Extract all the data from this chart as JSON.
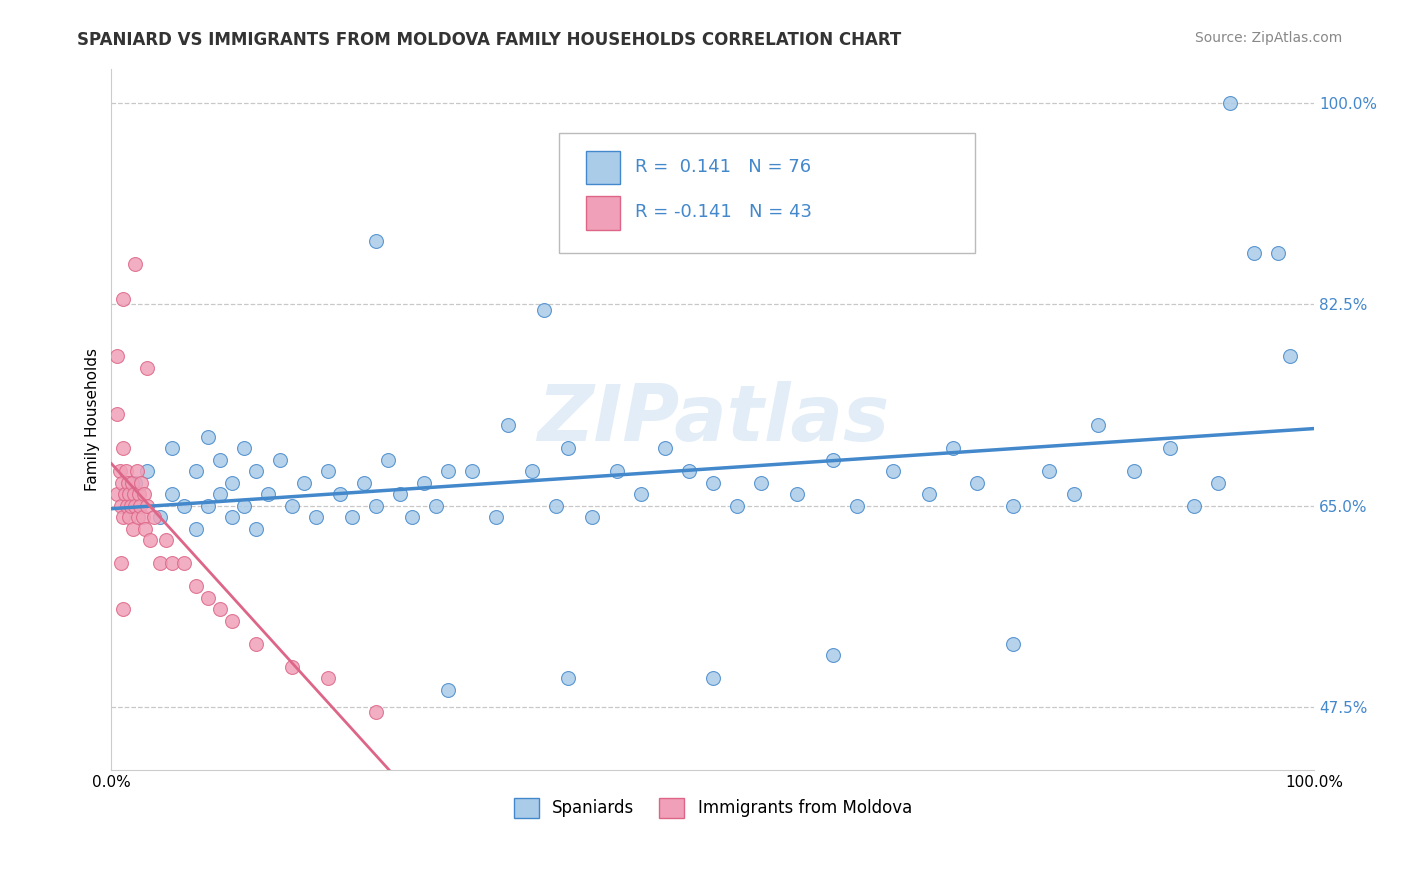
{
  "title": "SPANIARD VS IMMIGRANTS FROM MOLDOVA FAMILY HOUSEHOLDS CORRELATION CHART",
  "source": "Source: ZipAtlas.com",
  "ylabel": "Family Households",
  "ytick_values": [
    0.475,
    0.65,
    0.825,
    1.0
  ],
  "ytick_labels": [
    "47.5%",
    "65.0%",
    "82.5%",
    "100.0%"
  ],
  "xlim": [
    0.0,
    1.0
  ],
  "ylim": [
    0.42,
    1.03
  ],
  "r_spaniard": 0.141,
  "n_spaniard": 76,
  "r_moldova": -0.141,
  "n_moldova": 43,
  "color_spaniard": "#aacce8",
  "color_moldova": "#f0a0b8",
  "line_color_spaniard": "#4488cc",
  "line_color_moldova": "#dd6688",
  "line_color_moldova_dash": "#ccbbcc",
  "watermark": "ZIPatlas",
  "title_fontsize": 12,
  "tick_fontsize": 11,
  "legend_fontsize": 13
}
